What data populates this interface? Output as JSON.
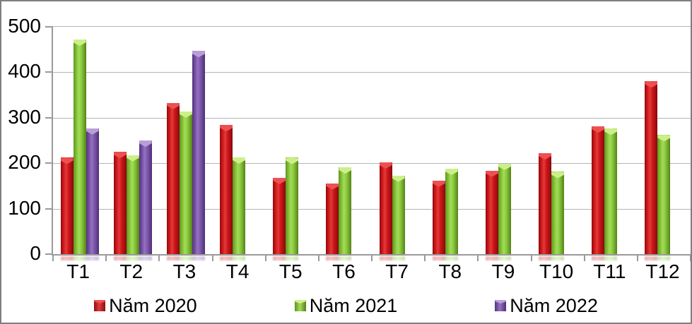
{
  "chart_data": {
    "type": "bar",
    "title": "",
    "categories": [
      "T1",
      "T2",
      "T3",
      "T4",
      "T5",
      "T6",
      "T7",
      "T8",
      "T9",
      "T10",
      "T11",
      "T12"
    ],
    "series": [
      {
        "name": "Năm 2020",
        "color": "#cc1214",
        "values": [
          212,
          225,
          333,
          284,
          168,
          156,
          202,
          162,
          184,
          222,
          281,
          380
        ]
      },
      {
        "name": "Năm 2021",
        "color": "#84c441",
        "values": [
          472,
          218,
          314,
          213,
          212,
          191,
          173,
          188,
          199,
          181,
          276,
          262
        ]
      },
      {
        "name": "Năm 2022",
        "color": "#7a52ac",
        "values": [
          277,
          250,
          447,
          null,
          null,
          null,
          null,
          null,
          null,
          null,
          null,
          null
        ]
      }
    ],
    "xlabel": "",
    "ylabel": "",
    "ylim": [
      0,
      500
    ],
    "yticks": [
      0,
      100,
      200,
      300,
      400,
      500
    ],
    "grid": true,
    "legend_position": "bottom",
    "bar_style": "3d-bevel",
    "background": "#ffffff"
  }
}
